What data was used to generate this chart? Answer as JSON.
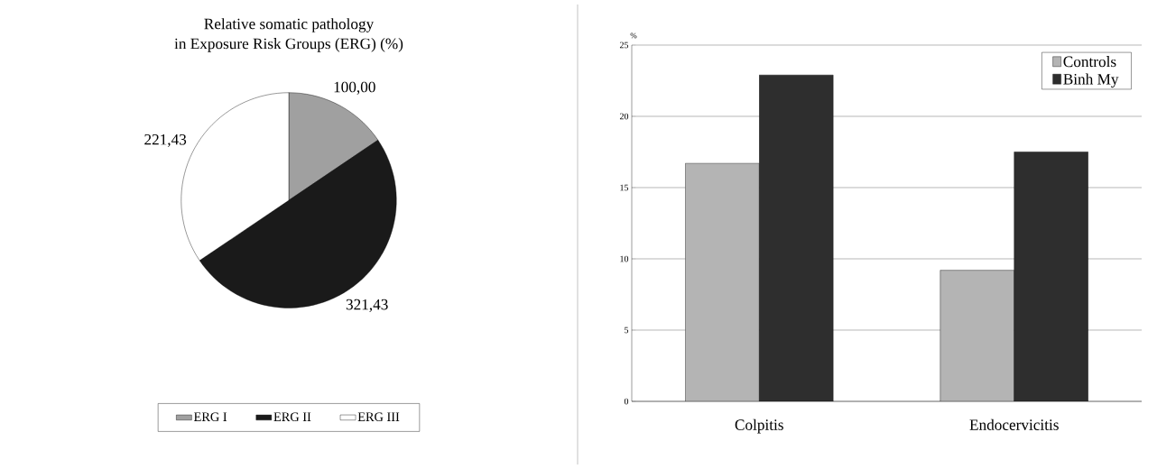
{
  "chart_data": [
    {
      "type": "pie",
      "title": "Relative somatic pathology\nin Exposure Risk Groups (ERG) (%)",
      "categories": [
        "ERG I",
        "ERG II",
        "ERG III"
      ],
      "values": [
        100,
        321.43,
        221.43
      ],
      "value_labels": [
        "100,00",
        "321,43",
        "221,43"
      ],
      "colors": [
        "#a0a0a0",
        "#1a1a1a",
        "#ffffff"
      ],
      "legend": "bottom"
    },
    {
      "type": "bar",
      "ylabel": "%",
      "categories": [
        "Colpitis",
        "Endocervicitis"
      ],
      "series": [
        {
          "name": "Controls",
          "color": "#b4b4b4",
          "values": [
            16.7,
            9.2
          ]
        },
        {
          "name": "Binh My",
          "color": "#2e2e2e",
          "values": [
            22.9,
            17.5
          ]
        }
      ],
      "ylim": [
        0,
        25
      ],
      "yticks": [
        0,
        5,
        10,
        15,
        20,
        25
      ],
      "grid": "y",
      "legend": "top right"
    }
  ]
}
